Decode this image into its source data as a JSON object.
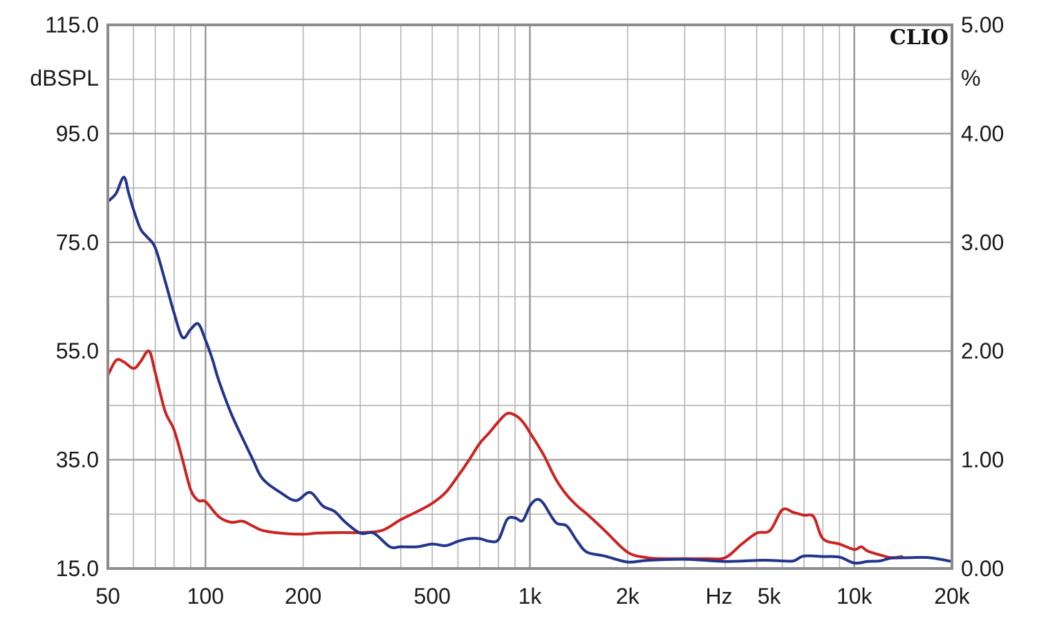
{
  "chart_data": {
    "type": "line",
    "brand": "CLIO",
    "x_scale": "log",
    "xlim": [
      50,
      20000
    ],
    "grid": true,
    "x_ticks": [
      {
        "value": 50,
        "label": "50"
      },
      {
        "value": 100,
        "label": "100"
      },
      {
        "value": 200,
        "label": "200"
      },
      {
        "value": 500,
        "label": "500"
      },
      {
        "value": 1000,
        "label": "1k"
      },
      {
        "value": 2000,
        "label": "2k"
      },
      {
        "value": 5000,
        "label": "5k"
      },
      {
        "value": 10000,
        "label": "10k"
      },
      {
        "value": 20000,
        "label": "20k"
      }
    ],
    "x_unit_label": "Hz",
    "y_left": {
      "label": "dBSPL",
      "ylim": [
        15,
        115
      ],
      "ticks": [
        {
          "value": 115,
          "label": "115.0"
        },
        {
          "value": 95,
          "label": "95.0"
        },
        {
          "value": 75,
          "label": "75.0"
        },
        {
          "value": 55,
          "label": "55.0"
        },
        {
          "value": 35,
          "label": "35.0"
        },
        {
          "value": 15,
          "label": "15.0"
        }
      ]
    },
    "y_right": {
      "label": "%",
      "ylim": [
        0,
        5
      ],
      "ticks": [
        {
          "value": 5,
          "label": "5.00"
        },
        {
          "value": 4,
          "label": "4.00"
        },
        {
          "value": 3,
          "label": "3.00"
        },
        {
          "value": 2,
          "label": "2.00"
        },
        {
          "value": 1,
          "label": "1.00"
        },
        {
          "value": 0,
          "label": "0.00"
        }
      ]
    },
    "series": [
      {
        "color": "#cc2222",
        "axis": "left",
        "x": [
          50,
          53,
          56,
          60,
          63,
          67,
          70,
          75,
          80,
          85,
          90,
          95,
          100,
          110,
          120,
          130,
          140,
          150,
          170,
          200,
          220,
          250,
          280,
          300,
          350,
          400,
          450,
          500,
          550,
          600,
          650,
          700,
          750,
          800,
          850,
          900,
          950,
          1000,
          1100,
          1200,
          1300,
          1400,
          1500,
          1700,
          2000,
          2300,
          2600,
          3000,
          3500,
          4000,
          4500,
          5000,
          5500,
          6000,
          6500,
          7000,
          7500,
          8000,
          9000,
          10000,
          10500,
          11000,
          12000,
          13000,
          14000
        ],
        "y": [
          50.5,
          53.3,
          53.0,
          51.8,
          53.0,
          55.0,
          51.0,
          44.0,
          40.5,
          35.0,
          29.5,
          27.5,
          27.3,
          24.5,
          23.5,
          23.7,
          22.8,
          22.0,
          21.5,
          21.3,
          21.5,
          21.6,
          21.6,
          21.6,
          22.0,
          24.0,
          25.5,
          27.0,
          29.0,
          32.0,
          35.0,
          38.0,
          40.0,
          42.0,
          43.5,
          43.2,
          42.0,
          40.0,
          36.0,
          31.5,
          28.5,
          26.5,
          25.0,
          22.0,
          18.0,
          17.0,
          16.8,
          16.8,
          16.8,
          17.0,
          19.5,
          21.5,
          22.0,
          25.8,
          25.3,
          24.8,
          24.5,
          20.5,
          19.5,
          18.5,
          19.0,
          18.2,
          17.5,
          17.0,
          17.2
        ]
      },
      {
        "color": "#22348c",
        "axis": "left",
        "x": [
          50,
          53,
          56,
          58,
          60,
          63,
          66,
          70,
          75,
          80,
          85,
          90,
          95,
          100,
          105,
          110,
          120,
          130,
          140,
          150,
          170,
          190,
          210,
          230,
          250,
          270,
          300,
          330,
          370,
          400,
          450,
          500,
          550,
          600,
          650,
          700,
          750,
          800,
          850,
          900,
          950,
          1000,
          1050,
          1100,
          1200,
          1300,
          1400,
          1500,
          1700,
          2000,
          2300,
          3000,
          4000,
          5000,
          5500,
          6000,
          6500,
          7000,
          8000,
          9000,
          10000,
          11000,
          12000,
          13000,
          15000,
          17000,
          20000
        ],
        "y": [
          82.5,
          84.0,
          87.0,
          84.0,
          81.0,
          77.5,
          76.0,
          74.0,
          68.0,
          62.0,
          57.5,
          59.0,
          60.0,
          57.0,
          53.5,
          49.5,
          43.5,
          39.0,
          35.0,
          31.5,
          29.0,
          27.5,
          29.0,
          26.5,
          25.5,
          23.5,
          21.5,
          21.5,
          19.0,
          19.0,
          19.0,
          19.5,
          19.2,
          20.0,
          20.5,
          20.5,
          20.0,
          20.3,
          24.0,
          24.3,
          23.8,
          26.5,
          27.7,
          27.0,
          23.5,
          22.8,
          20.0,
          18.0,
          17.3,
          16.2,
          16.5,
          16.7,
          16.3,
          16.5,
          16.5,
          16.4,
          16.4,
          17.3,
          17.2,
          17.1,
          16.0,
          16.3,
          16.4,
          16.9,
          17.0,
          17.0,
          16.3
        ]
      }
    ]
  }
}
